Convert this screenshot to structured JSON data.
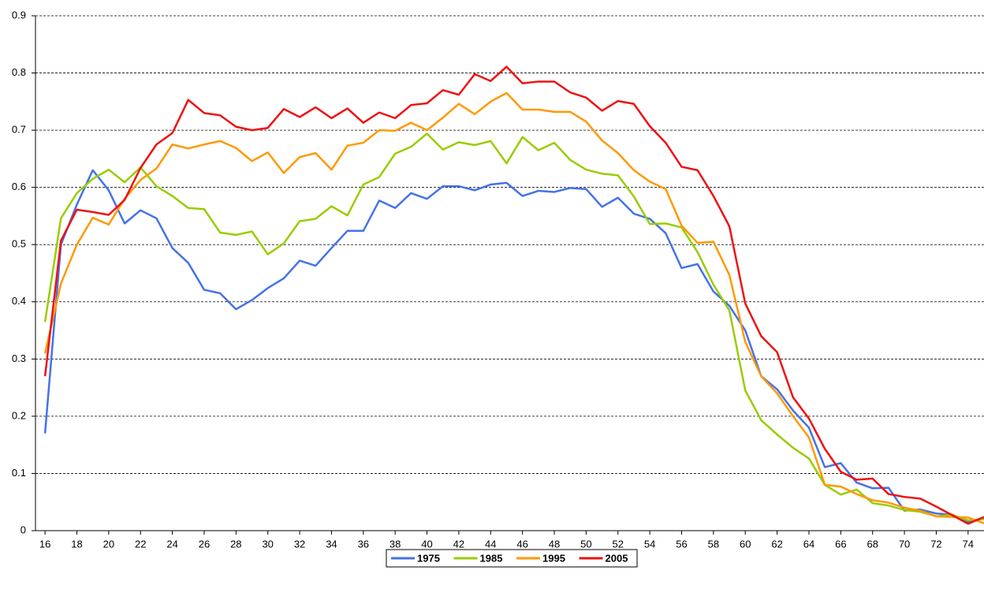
{
  "chart_data": {
    "type": "line",
    "x": [
      16,
      17,
      18,
      19,
      20,
      21,
      22,
      23,
      24,
      25,
      26,
      27,
      28,
      29,
      30,
      31,
      32,
      33,
      34,
      35,
      36,
      37,
      38,
      39,
      40,
      41,
      42,
      43,
      44,
      45,
      46,
      47,
      48,
      49,
      50,
      51,
      52,
      53,
      54,
      55,
      56,
      57,
      58,
      59,
      60,
      61,
      62,
      63,
      64,
      65,
      66,
      67,
      68,
      69,
      70,
      71,
      72,
      73,
      74,
      75
    ],
    "series": [
      {
        "name": "1975",
        "color": "#4472e8",
        "values": [
          0.17,
          0.5,
          0.57,
          0.63,
          0.595,
          0.537,
          0.56,
          0.546,
          0.494,
          0.468,
          0.421,
          0.415,
          0.387,
          0.403,
          0.424,
          0.441,
          0.472,
          0.463,
          0.494,
          0.524,
          0.524,
          0.577,
          0.564,
          0.59,
          0.58,
          0.602,
          0.602,
          0.595,
          0.605,
          0.608,
          0.585,
          0.594,
          0.592,
          0.599,
          0.597,
          0.566,
          0.582,
          0.554,
          0.545,
          0.52,
          0.459,
          0.466,
          0.418,
          0.393,
          0.35,
          0.27,
          0.247,
          0.21,
          0.18,
          0.111,
          0.118,
          0.084,
          0.074,
          0.075,
          0.035,
          0.037,
          0.03,
          0.028,
          0.015,
          0.022
        ]
      },
      {
        "name": "1985",
        "color": "#99cc00",
        "values": [
          0.365,
          0.546,
          0.59,
          0.615,
          0.631,
          0.609,
          0.635,
          0.602,
          0.585,
          0.564,
          0.562,
          0.521,
          0.517,
          0.523,
          0.483,
          0.502,
          0.541,
          0.545,
          0.567,
          0.551,
          0.605,
          0.618,
          0.659,
          0.671,
          0.694,
          0.666,
          0.679,
          0.674,
          0.681,
          0.642,
          0.688,
          0.665,
          0.678,
          0.648,
          0.631,
          0.624,
          0.621,
          0.584,
          0.536,
          0.537,
          0.53,
          0.487,
          0.43,
          0.385,
          0.245,
          0.193,
          0.168,
          0.145,
          0.126,
          0.08,
          0.063,
          0.072,
          0.048,
          0.044,
          0.036,
          0.033,
          0.025,
          0.028,
          0.018,
          0.02
        ]
      },
      {
        "name": "1995",
        "color": "#ff9900",
        "values": [
          0.31,
          0.432,
          0.5,
          0.547,
          0.535,
          0.58,
          0.613,
          0.633,
          0.675,
          0.668,
          0.675,
          0.681,
          0.669,
          0.646,
          0.661,
          0.625,
          0.653,
          0.66,
          0.631,
          0.673,
          0.678,
          0.7,
          0.699,
          0.713,
          0.7,
          0.722,
          0.746,
          0.728,
          0.75,
          0.765,
          0.736,
          0.736,
          0.732,
          0.732,
          0.715,
          0.682,
          0.66,
          0.63,
          0.61,
          0.597,
          0.533,
          0.503,
          0.505,
          0.447,
          0.33,
          0.27,
          0.24,
          0.2,
          0.163,
          0.08,
          0.077,
          0.064,
          0.053,
          0.049,
          0.04,
          0.035,
          0.025,
          0.024,
          0.023,
          0.013
        ]
      },
      {
        "name": "2005",
        "color": "#ee1111",
        "values": [
          0.27,
          0.507,
          0.561,
          0.557,
          0.552,
          0.578,
          0.634,
          0.675,
          0.695,
          0.753,
          0.73,
          0.726,
          0.706,
          0.7,
          0.704,
          0.737,
          0.723,
          0.74,
          0.721,
          0.738,
          0.713,
          0.731,
          0.721,
          0.744,
          0.747,
          0.77,
          0.762,
          0.798,
          0.786,
          0.811,
          0.782,
          0.785,
          0.785,
          0.766,
          0.757,
          0.734,
          0.751,
          0.746,
          0.707,
          0.678,
          0.636,
          0.63,
          0.585,
          0.532,
          0.397,
          0.34,
          0.312,
          0.233,
          0.196,
          0.143,
          0.103,
          0.089,
          0.091,
          0.064,
          0.059,
          0.056,
          0.042,
          0.027,
          0.012,
          0.024
        ]
      }
    ],
    "xlim": [
      15.4,
      75
    ],
    "xticks": [
      16,
      18,
      20,
      22,
      24,
      26,
      28,
      30,
      32,
      34,
      36,
      38,
      40,
      42,
      44,
      46,
      48,
      50,
      52,
      54,
      56,
      58,
      60,
      62,
      64,
      66,
      68,
      70,
      72,
      74
    ],
    "ylim": [
      0,
      0.9
    ],
    "yticks": [
      0,
      0.1,
      0.2,
      0.3,
      0.4,
      0.5,
      0.6,
      0.7,
      0.8,
      0.9
    ],
    "grid": true,
    "legend": "bottom"
  }
}
